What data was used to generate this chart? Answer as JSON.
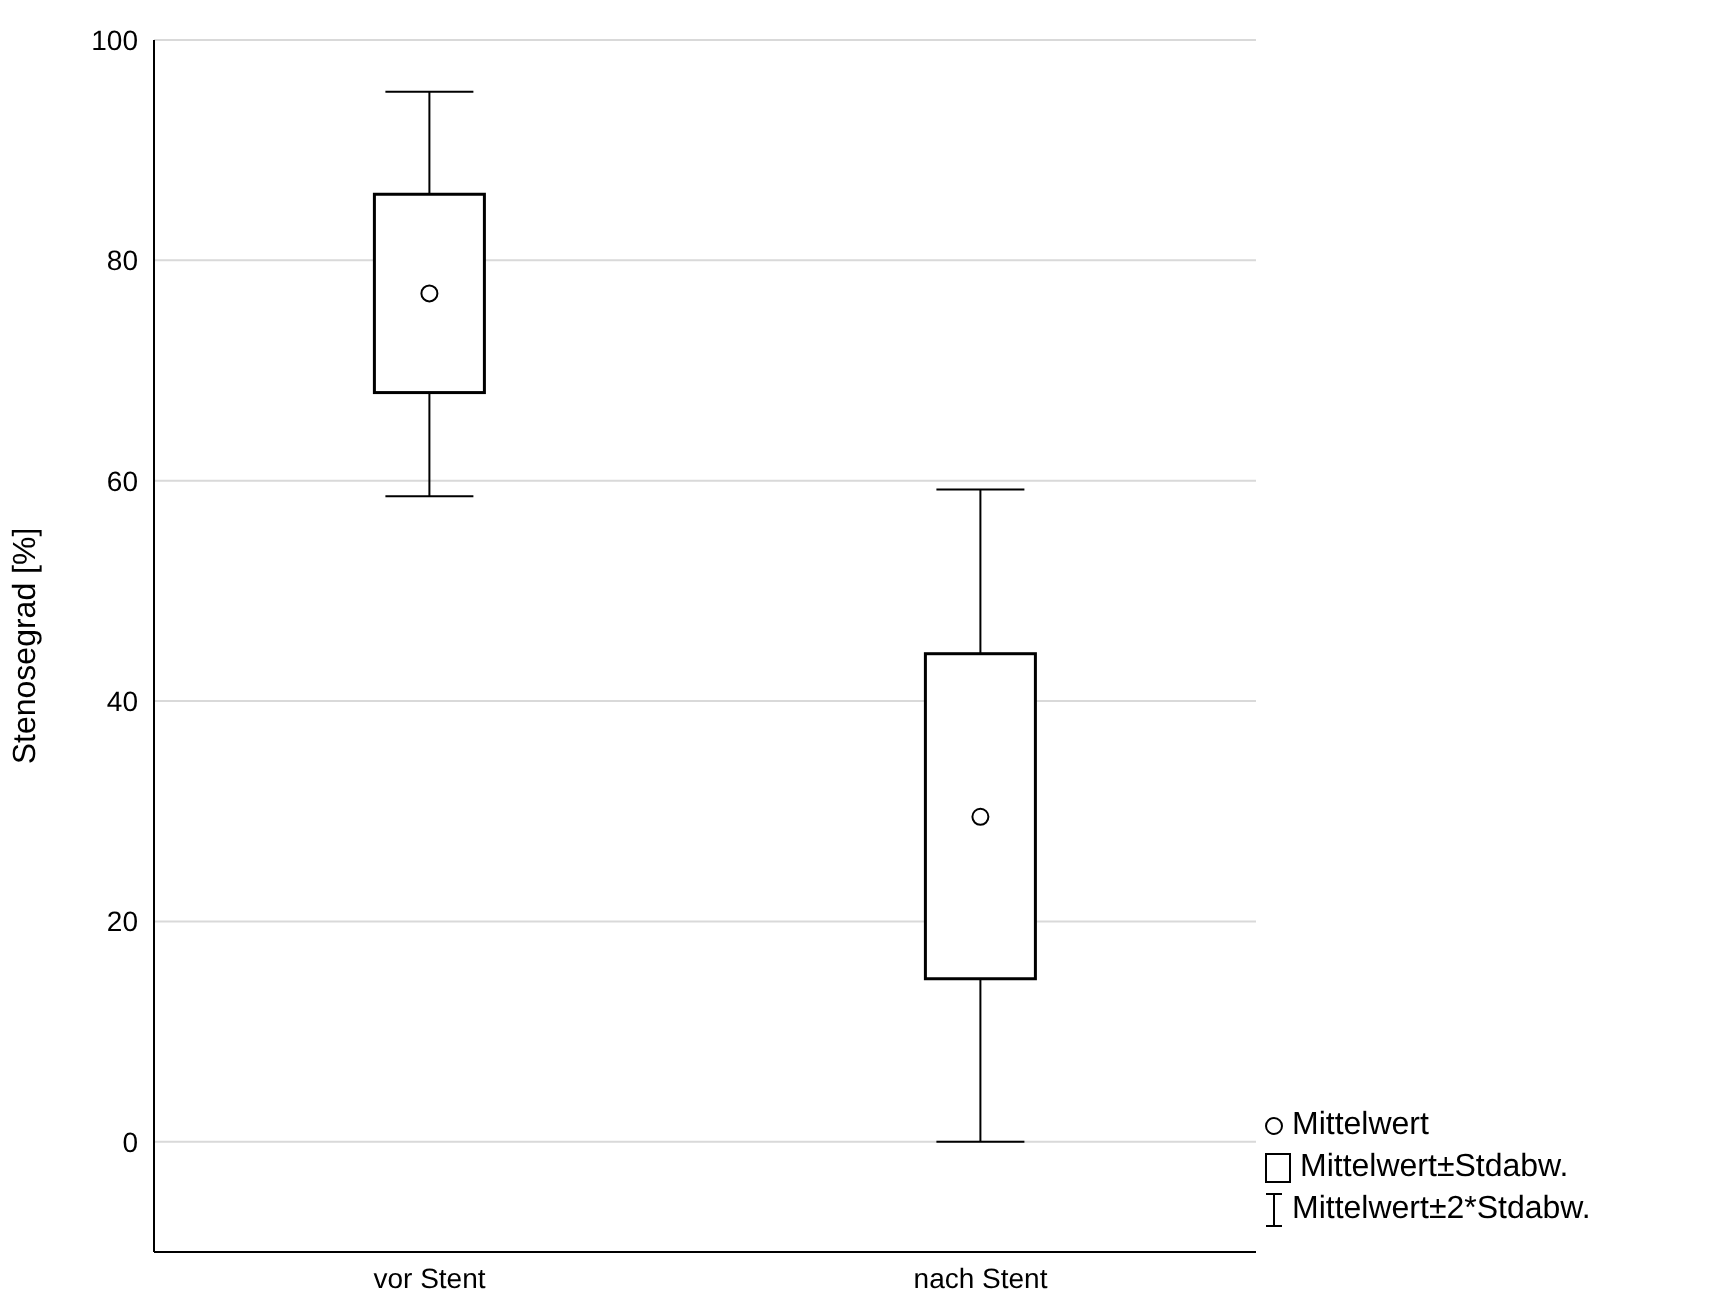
{
  "chart_data": {
    "type": "box",
    "ylabel": "Stenosegrad [%]",
    "categories": [
      "vor Stent",
      "nach Stent"
    ],
    "boxes": [
      {
        "low": 58.6,
        "q1": 68,
        "q3": 86,
        "high": 95.3,
        "mean": 77
      },
      {
        "low": 0,
        "q1": 14.8,
        "q3": 44.3,
        "high": 59.2,
        "mean": 29.5
      }
    ],
    "ylim": [
      -10,
      100
    ],
    "yticks": [
      0,
      20,
      40,
      60,
      80,
      100
    ],
    "grid": "y",
    "legend": false,
    "annotations": [
      "Mittelwert",
      "Mittelwert±Stdabw.",
      "Mittelwert±2*Stdabw."
    ]
  }
}
